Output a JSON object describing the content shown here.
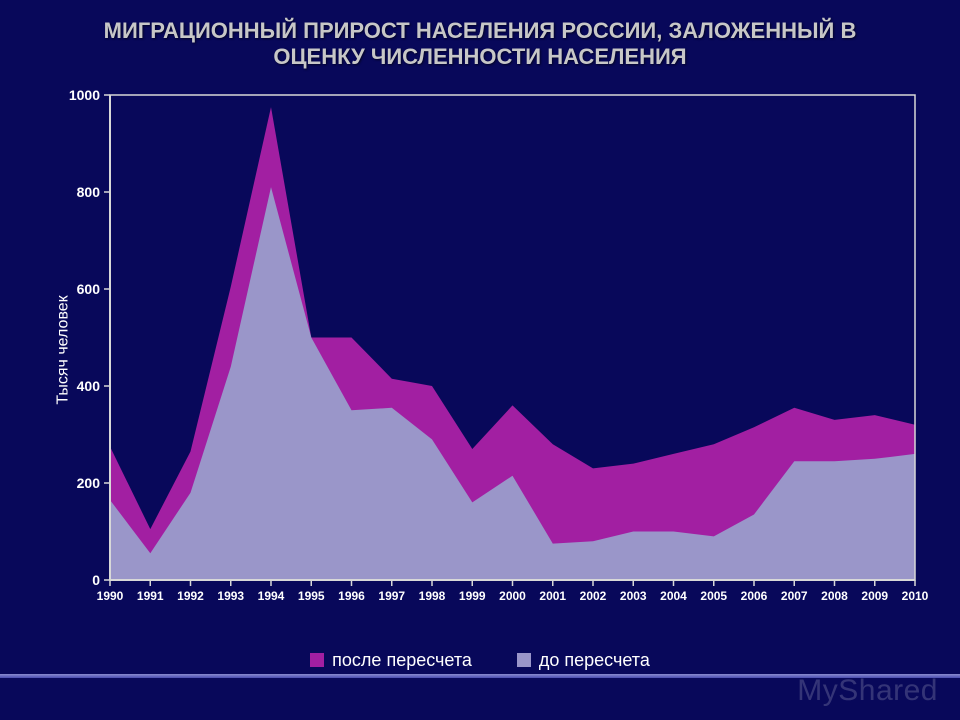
{
  "title": "МИГРАЦИОННЫЙ ПРИРОСТ НАСЕЛЕНИЯ РОССИИ, ЗАЛОЖЕННЫЙ В ОЦЕНКУ ЧИСЛЕННОСТИ НАСЕЛЕНИЯ",
  "watermark": "MyShared",
  "chart": {
    "type": "area",
    "ylabel": "Тысяч человек",
    "ylabel_fontsize": 16,
    "title_fontsize": 22,
    "xtick_fontsize": 12,
    "ytick_fontsize": 14,
    "background_color": "#08085a",
    "plot_border_color": "#d8d8d8",
    "axis_line_color": "#d8d8d8",
    "ylim": [
      0,
      1000
    ],
    "ytick_step": 200,
    "yticks": [
      0,
      200,
      400,
      600,
      800,
      1000
    ],
    "x_categories": [
      "1990",
      "1991",
      "1992",
      "1993",
      "1994",
      "1995",
      "1996",
      "1997",
      "1998",
      "1999",
      "2000",
      "2001",
      "2002",
      "2003",
      "2004",
      "2005",
      "2006",
      "2007",
      "2008",
      "2009",
      "2010"
    ],
    "series": [
      {
        "name": "после пересчета",
        "color": "#a21fa2",
        "values": [
          275,
          105,
          265,
          605,
          975,
          500,
          500,
          415,
          400,
          270,
          360,
          280,
          230,
          240,
          260,
          280,
          315,
          355,
          330,
          340,
          320
        ]
      },
      {
        "name": "до пересчета",
        "color": "#9a96c9",
        "values": [
          165,
          55,
          180,
          440,
          810,
          500,
          350,
          355,
          290,
          160,
          215,
          75,
          80,
          100,
          100,
          90,
          135,
          245,
          245,
          250,
          260
        ]
      }
    ],
    "legend_position": "bottom",
    "legend_fontsize": 18,
    "legend_text_color": "#ffffff"
  }
}
